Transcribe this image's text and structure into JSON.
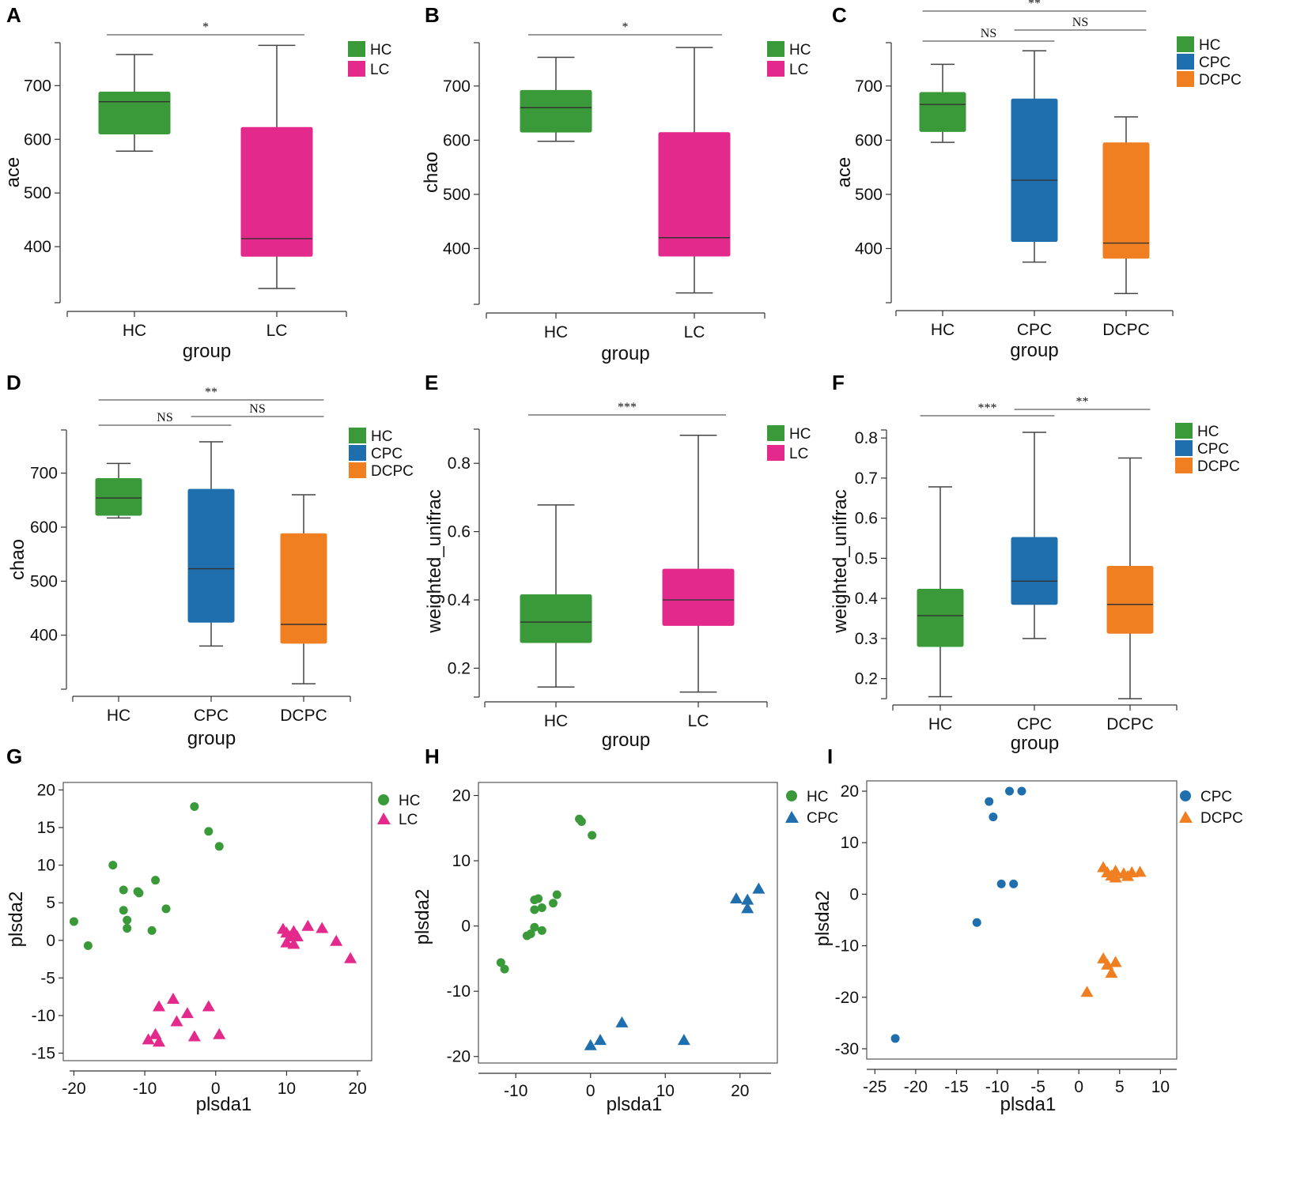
{
  "colors": {
    "HC": "#3a9a3a",
    "LC": "#e32a8c",
    "CPC": "#1f6fae",
    "DCPC": "#f07f22"
  },
  "chart_data": [
    {
      "panel": "A",
      "type": "box",
      "xlabel": "group",
      "ylabel": "ace",
      "ylim": [
        300,
        780
      ],
      "yticks": [
        400,
        500,
        600,
        700
      ],
      "categories": [
        "HC",
        "LC"
      ],
      "boxes": [
        {
          "group": "HC",
          "whisker_low": 578,
          "q1": 610,
          "median": 670,
          "q3": 688,
          "whisker_high": 758
        },
        {
          "group": "LC",
          "whisker_low": 322,
          "q1": 382,
          "median": 415,
          "q3": 622,
          "whisker_high": 775
        }
      ],
      "significance": [
        {
          "from": "HC",
          "to": "LC",
          "label": "*",
          "level": 0
        }
      ],
      "legend": [
        "HC",
        "LC"
      ]
    },
    {
      "panel": "B",
      "type": "box",
      "xlabel": "group",
      "ylabel": "chao",
      "ylim": [
        300,
        780
      ],
      "yticks": [
        400,
        500,
        600,
        700
      ],
      "categories": [
        "HC",
        "LC"
      ],
      "boxes": [
        {
          "group": "HC",
          "whisker_low": 598,
          "q1": 615,
          "median": 660,
          "q3": 692,
          "whisker_high": 753
        },
        {
          "group": "LC",
          "whisker_low": 318,
          "q1": 386,
          "median": 420,
          "q3": 614,
          "whisker_high": 771
        }
      ],
      "significance": [
        {
          "from": "HC",
          "to": "LC",
          "label": "*",
          "level": 0
        }
      ],
      "legend": [
        "HC",
        "LC"
      ]
    },
    {
      "panel": "C",
      "type": "box",
      "xlabel": "group",
      "ylabel": "ace",
      "ylim": [
        300,
        780
      ],
      "yticks": [
        400,
        500,
        600,
        700
      ],
      "categories": [
        "HC",
        "CPC",
        "DCPC"
      ],
      "boxes": [
        {
          "group": "HC",
          "whisker_low": 596,
          "q1": 616,
          "median": 666,
          "q3": 688,
          "whisker_high": 740
        },
        {
          "group": "CPC",
          "whisker_low": 375,
          "q1": 413,
          "median": 526,
          "q3": 676,
          "whisker_high": 765
        },
        {
          "group": "DCPC",
          "whisker_low": 317,
          "q1": 382,
          "median": 410,
          "q3": 595,
          "whisker_high": 643
        }
      ],
      "significance": [
        {
          "from": "HC",
          "to": "CPC",
          "label": "NS",
          "level": 0
        },
        {
          "from": "CPC",
          "to": "DCPC",
          "label": "NS",
          "level": 1
        },
        {
          "from": "HC",
          "to": "DCPC",
          "label": "**",
          "level": 2
        }
      ],
      "legend": [
        "HC",
        "CPC",
        "DCPC"
      ]
    },
    {
      "panel": "D",
      "type": "box",
      "xlabel": "group",
      "ylabel": "chao",
      "ylim": [
        300,
        780
      ],
      "yticks": [
        400,
        500,
        600,
        700
      ],
      "categories": [
        "HC",
        "CPC",
        "DCPC"
      ],
      "boxes": [
        {
          "group": "HC",
          "whisker_low": 617,
          "q1": 622,
          "median": 654,
          "q3": 690,
          "whisker_high": 718
        },
        {
          "group": "CPC",
          "whisker_low": 380,
          "q1": 424,
          "median": 523,
          "q3": 670,
          "whisker_high": 758
        },
        {
          "group": "DCPC",
          "whisker_low": 310,
          "q1": 385,
          "median": 420,
          "q3": 588,
          "whisker_high": 660
        }
      ],
      "significance": [
        {
          "from": "HC",
          "to": "CPC",
          "label": "NS",
          "level": 0
        },
        {
          "from": "CPC",
          "to": "DCPC",
          "label": "NS",
          "level": 1
        },
        {
          "from": "HC",
          "to": "DCPC",
          "label": "**",
          "level": 2
        }
      ],
      "legend": [
        "HC",
        "CPC",
        "DCPC"
      ]
    },
    {
      "panel": "E",
      "type": "box",
      "xlabel": "group",
      "ylabel": "weighted_unifrac",
      "ylim": [
        0.12,
        0.9
      ],
      "yticks": [
        "0.2",
        "0.4",
        "0.6",
        "0.8"
      ],
      "categories": [
        "HC",
        "LC"
      ],
      "boxes": [
        {
          "group": "HC",
          "whisker_low": 0.145,
          "q1": 0.275,
          "median": 0.335,
          "q3": 0.415,
          "whisker_high": 0.678
        },
        {
          "group": "LC",
          "whisker_low": 0.13,
          "q1": 0.325,
          "median": 0.4,
          "q3": 0.49,
          "whisker_high": 0.882
        }
      ],
      "significance": [
        {
          "from": "HC",
          "to": "LC",
          "label": "***",
          "level": 0
        }
      ],
      "legend": [
        "HC",
        "LC"
      ]
    },
    {
      "panel": "F",
      "type": "box",
      "xlabel": "group",
      "ylabel": "weighted_unifrac",
      "ylim": [
        0.15,
        0.82
      ],
      "yticks": [
        "0.2",
        "0.3",
        "0.4",
        "0.5",
        "0.6",
        "0.7",
        "0.8"
      ],
      "categories": [
        "HC",
        "CPC",
        "DCPC"
      ],
      "boxes": [
        {
          "group": "HC",
          "whisker_low": 0.155,
          "q1": 0.28,
          "median": 0.357,
          "q3": 0.423,
          "whisker_high": 0.678
        },
        {
          "group": "CPC",
          "whisker_low": 0.3,
          "q1": 0.385,
          "median": 0.443,
          "q3": 0.552,
          "whisker_high": 0.814
        },
        {
          "group": "DCPC",
          "whisker_low": 0.15,
          "q1": 0.313,
          "median": 0.385,
          "q3": 0.48,
          "whisker_high": 0.75
        }
      ],
      "significance": [
        {
          "from": "HC",
          "to": "CPC",
          "label": "***",
          "level": 0
        },
        {
          "from": "CPC",
          "to": "DCPC",
          "label": "**",
          "level": 0
        }
      ],
      "legend": [
        "HC",
        "CPC",
        "DCPC"
      ]
    },
    {
      "panel": "G",
      "type": "scatter",
      "xlabel": "plsda1",
      "ylabel": "plsda2",
      "xlim": [
        -21.5,
        22
      ],
      "ylim": [
        -16,
        21
      ],
      "xticks": [
        "-20",
        "-10",
        "0",
        "10",
        "20"
      ],
      "yticks": [
        "20",
        "15",
        "10",
        "5",
        "0",
        "-5",
        "-10",
        "-15"
      ],
      "series": [
        {
          "name": "HC",
          "marker": "circle",
          "points": [
            [
              -20,
              2.5
            ],
            [
              -18,
              -0.7
            ],
            [
              -14.5,
              10
            ],
            [
              -13,
              6.7
            ],
            [
              -13,
              4
            ],
            [
              -12.5,
              2.7
            ],
            [
              -12.5,
              1.6
            ],
            [
              -11,
              6.5
            ],
            [
              -10.8,
              6.3
            ],
            [
              -9,
              1.3
            ],
            [
              -8.5,
              8
            ],
            [
              -7,
              4.2
            ],
            [
              -3,
              17.8
            ],
            [
              -1,
              14.5
            ],
            [
              0.5,
              12.5
            ]
          ]
        },
        {
          "name": "LC",
          "marker": "triangle",
          "points": [
            [
              9.5,
              1.5
            ],
            [
              10,
              1
            ],
            [
              10.5,
              0.5
            ],
            [
              11,
              1.2
            ],
            [
              10,
              -0.3
            ],
            [
              11.5,
              0.5
            ],
            [
              11,
              -0.5
            ],
            [
              13,
              1.9
            ],
            [
              15,
              1.6
            ],
            [
              17,
              -0.1
            ],
            [
              19,
              -2.4
            ],
            [
              -8,
              -8.8
            ],
            [
              -6,
              -7.8
            ],
            [
              -4,
              -9.7
            ],
            [
              -9.5,
              -13.2
            ],
            [
              -8.5,
              -12.5
            ],
            [
              -8,
              -13.5
            ],
            [
              -5.5,
              -10.8
            ],
            [
              -3,
              -12.8
            ],
            [
              -1,
              -8.8
            ],
            [
              0.5,
              -12.5
            ]
          ]
        }
      ],
      "legend": [
        "HC",
        "LC"
      ]
    },
    {
      "panel": "H",
      "type": "scatter",
      "xlabel": "plsda1",
      "ylabel": "plsda2",
      "xlim": [
        -15,
        25
      ],
      "ylim": [
        -21,
        22
      ],
      "xticks": [
        "-10",
        "0",
        "10",
        "20"
      ],
      "yticks": [
        "20",
        "10",
        "0",
        "-10",
        "-20"
      ],
      "series": [
        {
          "name": "HC",
          "marker": "circle",
          "points": [
            [
              -1.5,
              16.4
            ],
            [
              -1.2,
              16
            ],
            [
              0.2,
              13.9
            ],
            [
              -12,
              -5.6
            ],
            [
              -11.5,
              -6.6
            ],
            [
              -8.5,
              -1.5
            ],
            [
              -8,
              -1.2
            ],
            [
              -7.5,
              -0.2
            ],
            [
              -6.5,
              -0.7
            ],
            [
              -7.5,
              2.5
            ],
            [
              -7.5,
              4
            ],
            [
              -7,
              4.2
            ],
            [
              -6.5,
              2.8
            ],
            [
              -5,
              3.5
            ],
            [
              -4.5,
              4.8
            ]
          ]
        },
        {
          "name": "CPC",
          "marker": "triangle",
          "points": [
            [
              19.5,
              4.2
            ],
            [
              21,
              4
            ],
            [
              21,
              2.7
            ],
            [
              22.5,
              5.7
            ],
            [
              0,
              -18.3
            ],
            [
              1.3,
              -17.5
            ],
            [
              4.2,
              -14.8
            ],
            [
              12.5,
              -17.5
            ]
          ]
        }
      ],
      "legend": [
        "HC",
        "CPC"
      ]
    },
    {
      "panel": "I",
      "type": "scatter",
      "xlabel": "plsda1",
      "ylabel": "plsda2",
      "xlim": [
        -26,
        12
      ],
      "ylim": [
        -32,
        22
      ],
      "xticks": [
        "-25",
        "-20",
        "-15",
        "-10",
        "-5",
        "0",
        "5",
        "10"
      ],
      "yticks": [
        "20",
        "10",
        "0",
        "-10",
        "-20",
        "-30"
      ],
      "series": [
        {
          "name": "CPC",
          "marker": "circle",
          "points": [
            [
              -22.5,
              -28
            ],
            [
              -12.5,
              -5.5
            ],
            [
              -11,
              18
            ],
            [
              -10.5,
              15
            ],
            [
              -9.5,
              2
            ],
            [
              -8.5,
              20
            ],
            [
              -8,
              2
            ],
            [
              -7,
              20
            ]
          ]
        },
        {
          "name": "DCPC",
          "marker": "triangle",
          "points": [
            [
              3,
              5.2
            ],
            [
              3.5,
              4.2
            ],
            [
              4,
              3.6
            ],
            [
              4.5,
              4.5
            ],
            [
              4.5,
              3.2
            ],
            [
              5.5,
              4
            ],
            [
              6,
              3.5
            ],
            [
              6.5,
              4.2
            ],
            [
              7.5,
              4.3
            ],
            [
              3,
              -12.5
            ],
            [
              3.5,
              -13.7
            ],
            [
              4,
              -15.3
            ],
            [
              4.5,
              -13.2
            ],
            [
              1,
              -19
            ]
          ]
        }
      ],
      "legend": [
        "CPC",
        "DCPC"
      ]
    }
  ]
}
